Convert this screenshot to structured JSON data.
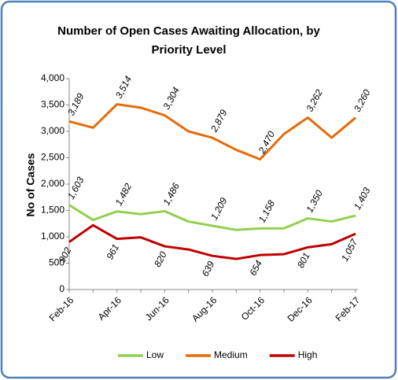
{
  "chart_data": {
    "type": "line",
    "title": "Number of Open Cases Awaiting Allocation, by Priority Level",
    "y_label": "No of Cases",
    "categories": [
      "Feb-16",
      null,
      "Apr-16",
      null,
      "Jun-16",
      null,
      "Aug-16",
      null,
      "Oct-16",
      null,
      "Dec-16",
      null,
      "Feb-17"
    ],
    "series": [
      {
        "name": "Low",
        "color": "#92d050",
        "label_side": "above",
        "values": [
          1603,
          1320,
          1482,
          1430,
          1486,
          1290,
          1209,
          1130,
          1158,
          1160,
          1350,
          1290,
          1403
        ],
        "value_labels": [
          "1,603",
          null,
          "1,482",
          null,
          "1,486",
          null,
          "1,209",
          null,
          "1,158",
          null,
          "1,350",
          null,
          "1,403"
        ]
      },
      {
        "name": "Medium",
        "color": "#e46c0a",
        "label_side": "above",
        "values": [
          3189,
          3070,
          3514,
          3450,
          3304,
          3000,
          2879,
          2650,
          2470,
          2950,
          3262,
          2880,
          3260
        ],
        "value_labels": [
          "3,189",
          null,
          "3,514",
          null,
          "3,304",
          null,
          "2,879",
          null,
          "2,470",
          null,
          "3,262",
          null,
          "3,260"
        ]
      },
      {
        "name": "High",
        "color": "#c00000",
        "label_side": "below",
        "values": [
          902,
          1220,
          961,
          990,
          820,
          760,
          639,
          580,
          654,
          670,
          801,
          860,
          1057
        ],
        "value_labels": [
          "902",
          null,
          "961",
          null,
          "820",
          null,
          "639",
          null,
          "654",
          null,
          "801",
          null,
          "1,057"
        ]
      }
    ],
    "ylim": [
      0,
      4000
    ],
    "yticks": [
      0,
      500,
      {
        "value": 1000,
        "label": "1,000"
      },
      {
        "value": 1500,
        "label": "1,500"
      },
      {
        "value": 2000,
        "label": "2,000"
      },
      {
        "value": 2500,
        "label": "2,500"
      },
      {
        "value": 3000,
        "label": "3,000"
      },
      {
        "value": 3500,
        "label": "3,500"
      },
      {
        "value": 4000,
        "label": "4,000"
      }
    ],
    "legend": "bottom"
  }
}
